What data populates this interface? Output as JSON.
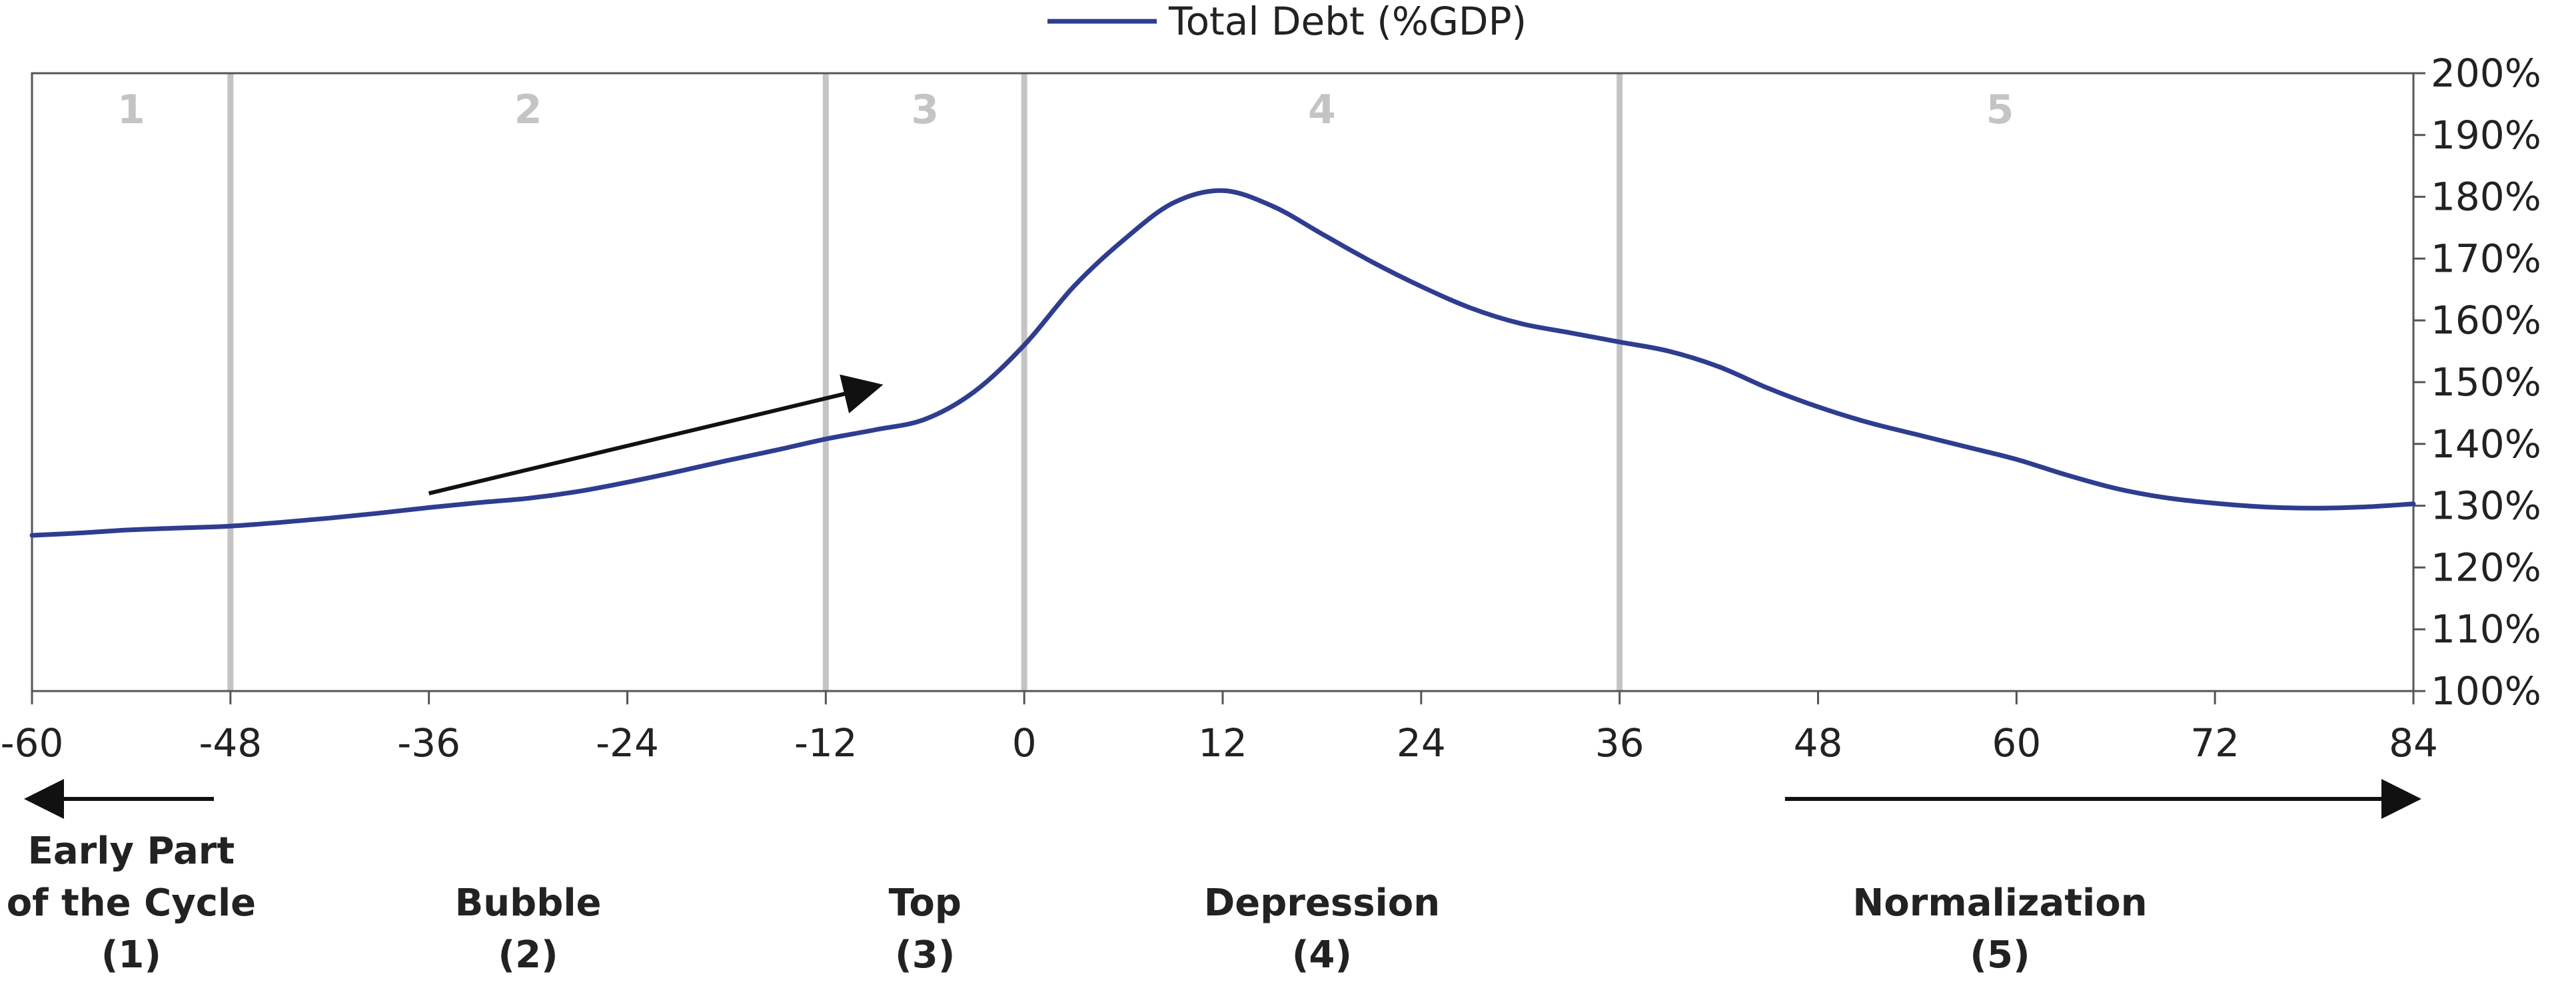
{
  "chart_data": {
    "type": "line",
    "legend": {
      "position": "top-center"
    },
    "series": [
      {
        "name": "Total Debt (%GDP)",
        "color": "#2e3d8f",
        "points": [
          [
            -60,
            125.2
          ],
          [
            -57,
            125.6
          ],
          [
            -54,
            126.1
          ],
          [
            -51,
            126.4
          ],
          [
            -48,
            126.7
          ],
          [
            -45,
            127.3
          ],
          [
            -42,
            128.0
          ],
          [
            -39,
            128.8
          ],
          [
            -36,
            129.7
          ],
          [
            -33,
            130.5
          ],
          [
            -30,
            131.2
          ],
          [
            -27,
            132.3
          ],
          [
            -24,
            133.8
          ],
          [
            -21,
            135.5
          ],
          [
            -18,
            137.3
          ],
          [
            -15,
            139.0
          ],
          [
            -12,
            140.8
          ],
          [
            -9,
            142.3
          ],
          [
            -6,
            144.0
          ],
          [
            -3,
            148.5
          ],
          [
            0,
            156.0
          ],
          [
            3,
            165.5
          ],
          [
            6,
            173.0
          ],
          [
            9,
            179.0
          ],
          [
            12,
            181.0
          ],
          [
            15,
            178.5
          ],
          [
            18,
            174.0
          ],
          [
            21,
            169.5
          ],
          [
            24,
            165.5
          ],
          [
            27,
            162.0
          ],
          [
            30,
            159.5
          ],
          [
            33,
            158.0
          ],
          [
            36,
            156.5
          ],
          [
            39,
            155.0
          ],
          [
            42,
            152.5
          ],
          [
            45,
            149.0
          ],
          [
            48,
            146.0
          ],
          [
            51,
            143.5
          ],
          [
            54,
            141.5
          ],
          [
            57,
            139.5
          ],
          [
            60,
            137.5
          ],
          [
            63,
            135.0
          ],
          [
            66,
            132.8
          ],
          [
            69,
            131.3
          ],
          [
            72,
            130.4
          ],
          [
            75,
            129.8
          ],
          [
            78,
            129.6
          ],
          [
            81,
            129.8
          ],
          [
            84,
            130.3
          ]
        ]
      }
    ],
    "x_axis": {
      "min": -60,
      "max": 84,
      "ticks": [
        "-60",
        "-48",
        "-36",
        "-24",
        "-12",
        "0",
        "12",
        "24",
        "36",
        "48",
        "60",
        "72",
        "84"
      ]
    },
    "y_axis": {
      "min": 100,
      "max": 200,
      "position": "right",
      "ticks": [
        "100%",
        "110%",
        "120%",
        "130%",
        "140%",
        "150%",
        "160%",
        "170%",
        "180%",
        "190%",
        "200%"
      ]
    },
    "phase_dividers": [
      -48,
      -12,
      0,
      36
    ],
    "phases": [
      {
        "number": "1",
        "center": -54,
        "label_lines": [
          "Early Part",
          "of the Cycle",
          "(1)"
        ]
      },
      {
        "number": "2",
        "center": -30,
        "label_lines": [
          "Bubble",
          "(2)"
        ]
      },
      {
        "number": "3",
        "center": -6,
        "label_lines": [
          "Top",
          "(3)"
        ]
      },
      {
        "number": "4",
        "center": 18,
        "label_lines": [
          "Depression",
          "(4)"
        ]
      },
      {
        "number": "5",
        "center": 59,
        "label_lines": [
          "Normalization",
          "(5)"
        ]
      }
    ],
    "annotations": [
      {
        "kind": "trend-arrow",
        "from": [
          -36,
          132
        ],
        "to": [
          -9,
          149.3
        ]
      },
      {
        "kind": "left-arrow",
        "from": [
          -49,
          0
        ],
        "to": [
          -60,
          0
        ]
      },
      {
        "kind": "right-arrow",
        "from": [
          46,
          0
        ],
        "to": [
          84,
          0
        ]
      }
    ],
    "colors": {
      "line": "#2e3d8f",
      "divider": "#c4c4c4",
      "axis": "#555555",
      "arrow": "#111111"
    }
  }
}
